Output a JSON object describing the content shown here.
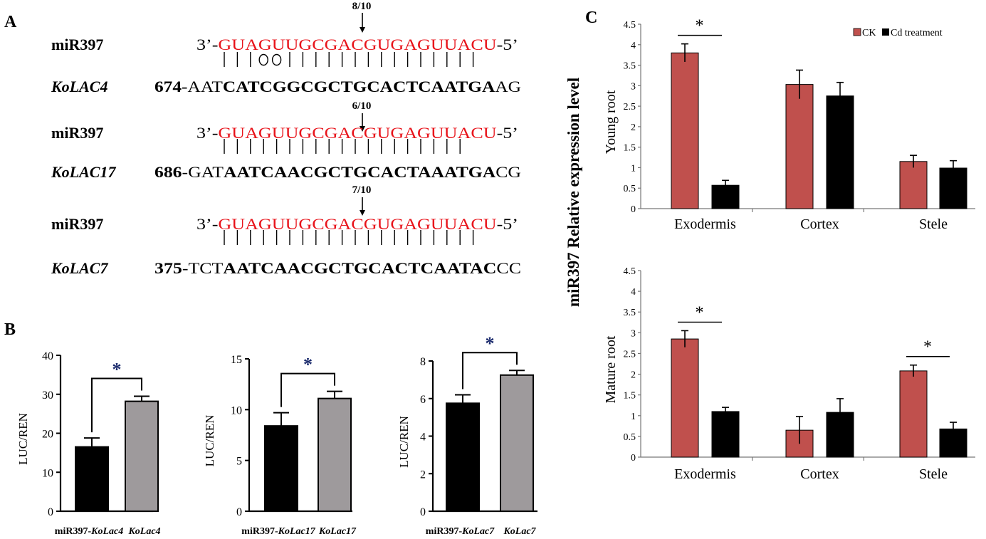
{
  "panels": {
    "a": "A",
    "b": "B",
    "c": "C"
  },
  "alignments": [
    {
      "ratio": "8/10",
      "mirna": "miR397",
      "mirna_prefix": "3’-",
      "mirna_seq": "GUAGUUGCGACGUGAGUUACU",
      "mirna_suffix": "-5’",
      "pairing": [
        "|",
        "|",
        "|",
        "o",
        "o",
        "|",
        "|",
        "|",
        "|",
        "|",
        "|",
        "|",
        "|",
        "|",
        "|",
        "|",
        "|",
        "|",
        "|",
        "|"
      ],
      "gene": "KoLAC4",
      "position": "674",
      "target_head": "AAT",
      "target_core": "CATCGGCGCTGCACTCAATGA",
      "target_tail": "AG"
    },
    {
      "ratio": "6/10",
      "mirna": "miR397",
      "mirna_prefix": "3’-",
      "mirna_seq": "GUAGUUGCGACGUGAGUUACU",
      "mirna_suffix": "-5’",
      "pairing": [
        "|",
        "|",
        "|",
        "|",
        "|",
        "|",
        "|",
        "|",
        "|",
        "|",
        "|",
        "|",
        "|",
        "|",
        "|",
        "|",
        "|",
        "|",
        "|"
      ],
      "gene": "KoLAC17",
      "position": "686",
      "target_head": "GAT",
      "target_core": "AATCAACGCTGCACTAAATGA",
      "target_tail": "CG"
    },
    {
      "ratio": "7/10",
      "mirna": "miR397",
      "mirna_prefix": "3’-",
      "mirna_seq": "GUAGUUGCGACGUGAGUUACU",
      "mirna_suffix": "-5’",
      "pairing": [
        "|",
        "|",
        "|",
        "|",
        "|",
        "|",
        "|",
        "|",
        "|",
        "|",
        "|",
        "|",
        "|",
        "|",
        "|",
        "|",
        "|",
        "|",
        "|",
        "|"
      ],
      "gene": "KoLAC7",
      "position": "375",
      "target_head": "TCT",
      "target_core": "AATCAACGCTGCACTCAATAC",
      "target_tail": "CC"
    }
  ],
  "colors": {
    "mirna": "#e8141b",
    "ck": "#c0504d",
    "cd": "#000000",
    "luc_black": "#000000",
    "luc_grey": "#9e9a9c"
  },
  "chart_data": [
    {
      "type": "bar",
      "ylabel": "LUC/REN",
      "ylim": [
        0,
        40
      ],
      "yticks": [
        "0",
        "10",
        "20",
        "30",
        "40"
      ],
      "categories": [
        {
          "prefix": "miR397-",
          "gene": "KoLac4"
        },
        {
          "prefix": "",
          "gene": "KoLac4"
        }
      ],
      "values": [
        16.5,
        28.2
      ],
      "errors": [
        2.3,
        1.3
      ],
      "significance": "*"
    },
    {
      "type": "bar",
      "ylabel": "LUC/REN",
      "ylim": [
        0,
        15
      ],
      "yticks": [
        "0",
        "5",
        "10",
        "15"
      ],
      "categories": [
        {
          "prefix": "miR397-",
          "gene": "KoLac17"
        },
        {
          "prefix": "",
          "gene": "KoLac17"
        }
      ],
      "values": [
        8.4,
        11.1
      ],
      "errors": [
        1.3,
        0.7
      ],
      "significance": "*"
    },
    {
      "type": "bar",
      "ylabel": "LUC/REN",
      "ylim": [
        0,
        8
      ],
      "yticks": [
        "0",
        "2",
        "4",
        "6",
        "8"
      ],
      "categories": [
        {
          "prefix": "miR397-",
          "gene": "KoLac7"
        },
        {
          "prefix": "",
          "gene": "KoLac7"
        }
      ],
      "values": [
        5.75,
        7.25
      ],
      "errors": [
        0.45,
        0.25
      ],
      "significance": "*"
    },
    {
      "type": "bar",
      "ylabel": "Young root",
      "ylim": [
        0,
        4.5
      ],
      "yticks": [
        "0",
        "0.5",
        "1",
        "1.5",
        "2",
        "2.5",
        "3",
        "3.5",
        "4",
        "4.5"
      ],
      "categories": [
        "Exodermis",
        "Cortex",
        "Stele"
      ],
      "series": [
        {
          "name": "CK",
          "values": [
            3.8,
            3.03,
            1.15
          ],
          "errors": [
            0.22,
            0.35,
            0.15
          ]
        },
        {
          "name": "Cd treatment",
          "values": [
            0.57,
            2.75,
            0.99
          ],
          "errors": [
            0.12,
            0.33,
            0.18
          ]
        }
      ],
      "significance": [
        {
          "category": "Exodermis",
          "mark": "*"
        }
      ],
      "legend": "top-right"
    },
    {
      "type": "bar",
      "ylabel": "Mature root",
      "ylim": [
        0,
        4.5
      ],
      "yticks": [
        "0",
        "0.5",
        "1",
        "1.5",
        "2",
        "2.5",
        "3",
        "3.5",
        "4",
        "4.5"
      ],
      "categories": [
        "Exodermis",
        "Cortex",
        "Stele"
      ],
      "series": [
        {
          "name": "CK",
          "values": [
            2.85,
            0.65,
            2.08
          ],
          "errors": [
            0.2,
            0.33,
            0.14
          ]
        },
        {
          "name": "Cd treatment",
          "values": [
            1.1,
            1.08,
            0.68
          ],
          "errors": [
            0.1,
            0.33,
            0.16
          ]
        }
      ],
      "significance": [
        {
          "category": "Exodermis",
          "mark": "*"
        },
        {
          "category": "Stele",
          "mark": "*"
        }
      ]
    }
  ],
  "panel_c_shared_ylabel": "miR397 Relative expression level"
}
